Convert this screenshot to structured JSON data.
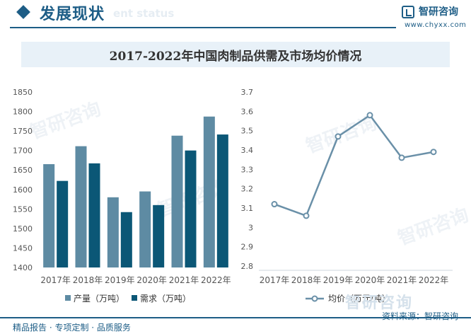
{
  "header": {
    "section_title": "发展现状",
    "section_subtitle": "ent status",
    "logo_name": "智研咨询",
    "logo_url": "www.chyxx.com"
  },
  "colors": {
    "production": "#5e8ba3",
    "demand": "#0b5776",
    "price_line": "#6a90a8",
    "brand": "#1d5d86"
  },
  "chart_data": [
    {
      "type": "bar",
      "title": "2017-2022年中国肉制品供需及市场均价情况",
      "categories": [
        "2017年",
        "2018年",
        "2019年",
        "2020年",
        "2021年",
        "2022年"
      ],
      "series": [
        {
          "name": "产量（万吨）",
          "values": [
            1665,
            1711,
            1580,
            1595,
            1738,
            1787
          ]
        },
        {
          "name": "需求（万吨）",
          "values": [
            1622,
            1667,
            1542,
            1560,
            1700,
            1741
          ]
        }
      ],
      "ylim": [
        1400,
        1850
      ],
      "yticks": [
        "1400",
        "1450",
        "1500",
        "1550",
        "1600",
        "1650",
        "1700",
        "1750",
        "1800",
        "1850"
      ],
      "legend": "bottom"
    },
    {
      "type": "line",
      "categories": [
        "2017年",
        "2018年",
        "2019年",
        "2020年",
        "2021年",
        "2022年"
      ],
      "series": [
        {
          "name": "均价（万元/吨）",
          "values": [
            3.12,
            3.06,
            3.47,
            3.58,
            3.36,
            3.39
          ]
        }
      ],
      "ylim": [
        2.8,
        3.7
      ],
      "yticks": [
        "2.8",
        "2.9",
        "3",
        "3.1",
        "3.2",
        "3.3",
        "3.4",
        "3.5",
        "3.6",
        "3.7"
      ],
      "legend": "bottom"
    }
  ],
  "footer": {
    "left": "精品报告 · 专项定制 · 品质服务",
    "brand": "智研咨询",
    "source": "资料来源：智研咨询"
  }
}
